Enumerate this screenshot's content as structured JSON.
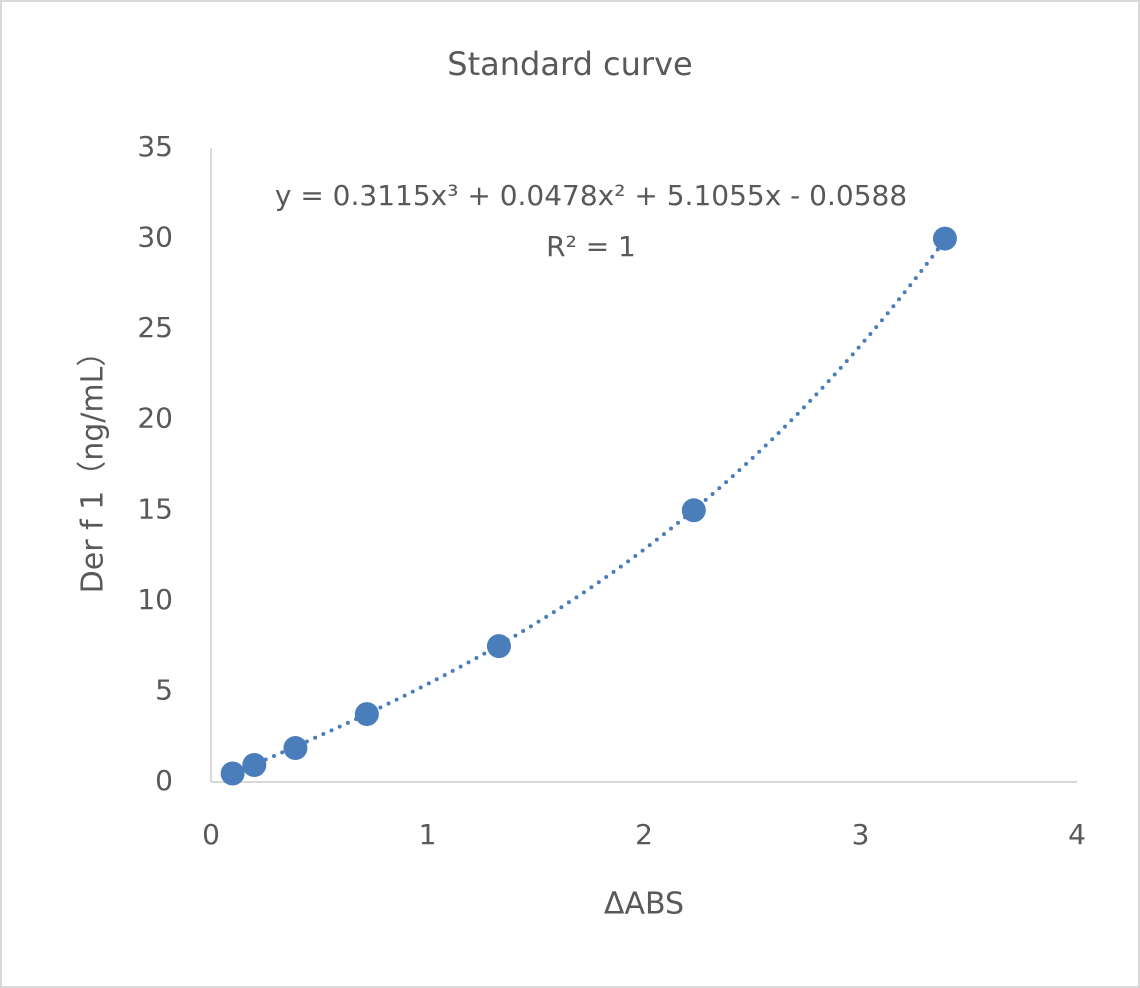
{
  "chart_data": {
    "type": "scatter",
    "title": "Standard curve",
    "x_label": "ΔABS",
    "y_label": "Der f 1（ng/mL）",
    "series": [
      {
        "name": "Der f 1",
        "color": "#4a7ebb",
        "x": [
          0.1,
          0.2,
          0.39,
          0.72,
          1.33,
          2.23,
          3.39
        ],
        "values": [
          0.469,
          0.938,
          1.875,
          3.75,
          7.5,
          15,
          30
        ]
      }
    ],
    "trendline": {
      "type": "polynomial",
      "order": 3,
      "color": "#4a7ebb",
      "equation": "y = 0.3115x³ + 0.0478x² + 5.1055x - 0.0588",
      "r_squared": "R² = 1"
    },
    "xlim": [
      0,
      4
    ],
    "xticks": [
      0,
      1,
      2,
      3,
      4
    ],
    "ylim": [
      0,
      35
    ],
    "yticks": [
      0,
      5,
      10,
      15,
      20,
      25,
      30,
      35
    ],
    "grid": false
  }
}
